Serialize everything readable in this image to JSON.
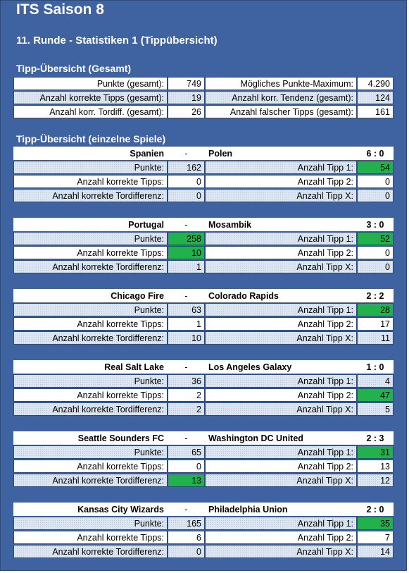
{
  "title": "ITS Saison 8",
  "subtitle": "11. Runde - Statistiken 1 (Tippübersicht)",
  "overall": {
    "heading": "Tipp-Übersicht (Gesamt)",
    "rows": [
      {
        "l_label": "Punkte (gesamt):",
        "l_value": "749",
        "r_label": "Mögliches Punkte-Maximum:",
        "r_value": "4.290"
      },
      {
        "l_label": "Anzahl korrekte Tipps (gesamt):",
        "l_value": "19",
        "r_label": "Anzahl korr. Tendenz (gesamt):",
        "r_value": "124"
      },
      {
        "l_label": "Anzahl korr. Tordiff. (gesamt):",
        "l_value": "26",
        "r_label": "Anzahl falscher Tipps (gesamt):",
        "r_value": "161"
      }
    ]
  },
  "games_heading": "Tipp-Übersicht (einzelne Spiele)",
  "labels": {
    "dash": "-",
    "punkte": "Punkte:",
    "korrekte": "Anzahl korrekte Tipps:",
    "tordiff": "Anzahl korrekte Tordifferenz:",
    "tipp1": "Anzahl Tipp 1:",
    "tipp2": "Anzahl Tipp 2:",
    "tippx": "Anzahl Tipp X:"
  },
  "highlight_color": "#22b14c",
  "games": [
    {
      "home": "Spanien",
      "away": "Polen",
      "score": "6 : 0",
      "punkte": "162",
      "korrekte": "0",
      "tordiff": "0",
      "tipp1": "54",
      "tipp2": "0",
      "tippx": "0",
      "highlight": [
        "tipp1"
      ]
    },
    {
      "home": "Portugal",
      "away": "Mosambik",
      "score": "3 : 0",
      "punkte": "258",
      "korrekte": "10",
      "tordiff": "1",
      "tipp1": "52",
      "tipp2": "0",
      "tippx": "0",
      "highlight": [
        "punkte",
        "korrekte",
        "tipp1"
      ]
    },
    {
      "home": "Chicago Fire",
      "away": "Colorado Rapids",
      "score": "2 : 2",
      "punkte": "63",
      "korrekte": "1",
      "tordiff": "10",
      "tipp1": "28",
      "tipp2": "17",
      "tippx": "11",
      "highlight": [
        "tipp1"
      ]
    },
    {
      "home": "Real Salt Lake",
      "away": "Los Angeles Galaxy",
      "score": "1 : 0",
      "punkte": "36",
      "korrekte": "2",
      "tordiff": "2",
      "tipp1": "4",
      "tipp2": "47",
      "tippx": "5",
      "highlight": [
        "tipp2"
      ]
    },
    {
      "home": "Seattle Sounders FC",
      "away": "Washington DC United",
      "score": "2 : 3",
      "punkte": "65",
      "korrekte": "0",
      "tordiff": "13",
      "tipp1": "31",
      "tipp2": "13",
      "tippx": "12",
      "highlight": [
        "tordiff",
        "tipp1"
      ]
    },
    {
      "home": "Kansas City Wizards",
      "away": "Philadelphia Union",
      "score": "2 : 0",
      "punkte": "165",
      "korrekte": "6",
      "tordiff": "0",
      "tipp1": "35",
      "tipp2": "7",
      "tippx": "14",
      "highlight": [
        "tipp1"
      ]
    }
  ]
}
